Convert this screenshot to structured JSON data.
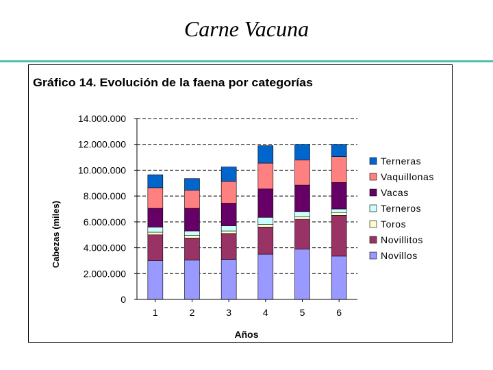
{
  "slide": {
    "title": "Carne Vacuna"
  },
  "chart_data": {
    "type": "bar",
    "stacked": true,
    "title": "Gráfico 14. Evolución de la faena por categorías",
    "xlabel": "Años",
    "ylabel": "Cabezas (miles)",
    "categories": [
      "1",
      "2",
      "3",
      "4",
      "5",
      "6"
    ],
    "ylim": [
      0,
      14000000
    ],
    "yticks": [
      0,
      2000000,
      4000000,
      6000000,
      8000000,
      10000000,
      12000000,
      14000000
    ],
    "ytick_labels": [
      "0",
      "2.000.000",
      "4.000.000",
      "6.000.000",
      "8.000.000",
      "10.000.000",
      "12.000.000",
      "14.000.000"
    ],
    "grid": "dashed horizontal",
    "legend_position": "right",
    "series": [
      {
        "name": "Novillos",
        "color": "#9999ff",
        "values": [
          3000000,
          3050000,
          3100000,
          3500000,
          3900000,
          3350000
        ]
      },
      {
        "name": "Novillitos",
        "color": "#993366",
        "values": [
          2000000,
          1700000,
          2000000,
          2100000,
          2300000,
          3150000
        ]
      },
      {
        "name": "Toros",
        "color": "#ffffcc",
        "values": [
          200000,
          200000,
          200000,
          200000,
          200000,
          200000
        ]
      },
      {
        "name": "Terneros",
        "color": "#ccffff",
        "values": [
          400000,
          350000,
          400000,
          550000,
          400000,
          300000
        ]
      },
      {
        "name": "Vacas",
        "color": "#660066",
        "values": [
          1450000,
          1750000,
          1750000,
          2200000,
          2050000,
          2050000
        ]
      },
      {
        "name": "Vaquillonas",
        "color": "#ff8080",
        "values": [
          1600000,
          1400000,
          1700000,
          2000000,
          1950000,
          2000000
        ]
      },
      {
        "name": "Terneras",
        "color": "#0066cc",
        "values": [
          1000000,
          900000,
          1100000,
          1350000,
          1200000,
          950000
        ]
      }
    ],
    "legend_order": [
      "Terneras",
      "Vaquillonas",
      "Vacas",
      "Terneros",
      "Toros",
      "Novillitos",
      "Novillos"
    ]
  }
}
